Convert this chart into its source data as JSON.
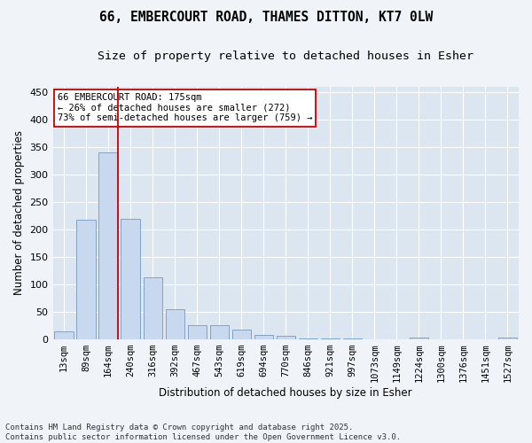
{
  "title_line1": "66, EMBERCOURT ROAD, THAMES DITTON, KT7 0LW",
  "title_line2": "Size of property relative to detached houses in Esher",
  "xlabel": "Distribution of detached houses by size in Esher",
  "ylabel": "Number of detached properties",
  "bar_color": "#c8d8ee",
  "bar_edge_color": "#7799bb",
  "plot_bg_color": "#dce6f0",
  "fig_bg_color": "#f0f4f8",
  "grid_color": "#ffffff",
  "categories": [
    "13sqm",
    "89sqm",
    "164sqm",
    "240sqm",
    "316sqm",
    "392sqm",
    "467sqm",
    "543sqm",
    "619sqm",
    "694sqm",
    "770sqm",
    "846sqm",
    "921sqm",
    "997sqm",
    "1073sqm",
    "1149sqm",
    "1224sqm",
    "1300sqm",
    "1376sqm",
    "1451sqm",
    "1527sqm"
  ],
  "values": [
    15,
    218,
    340,
    220,
    113,
    55,
    25,
    25,
    18,
    7,
    6,
    1,
    1,
    1,
    0,
    0,
    3,
    0,
    0,
    0,
    3
  ],
  "red_line_bar_index": 2,
  "annotation_text_l1": "66 EMBERCOURT ROAD: 175sqm",
  "annotation_text_l2": "← 26% of detached houses are smaller (272)",
  "annotation_text_l3": "73% of semi-detached houses are larger (759) →",
  "annotation_box_color": "#ffffff",
  "annotation_box_edge": "#cc0000",
  "red_line_color": "#cc0000",
  "footer_line1": "Contains HM Land Registry data © Crown copyright and database right 2025.",
  "footer_line2": "Contains public sector information licensed under the Open Government Licence v3.0.",
  "yticks": [
    0,
    50,
    100,
    150,
    200,
    250,
    300,
    350,
    400,
    450
  ],
  "ylim": [
    0,
    460
  ],
  "title_fontsize": 10.5,
  "subtitle_fontsize": 9.5,
  "tick_fontsize": 7.5,
  "axis_label_fontsize": 8.5,
  "footer_fontsize": 6.5,
  "annotation_fontsize": 7.5
}
